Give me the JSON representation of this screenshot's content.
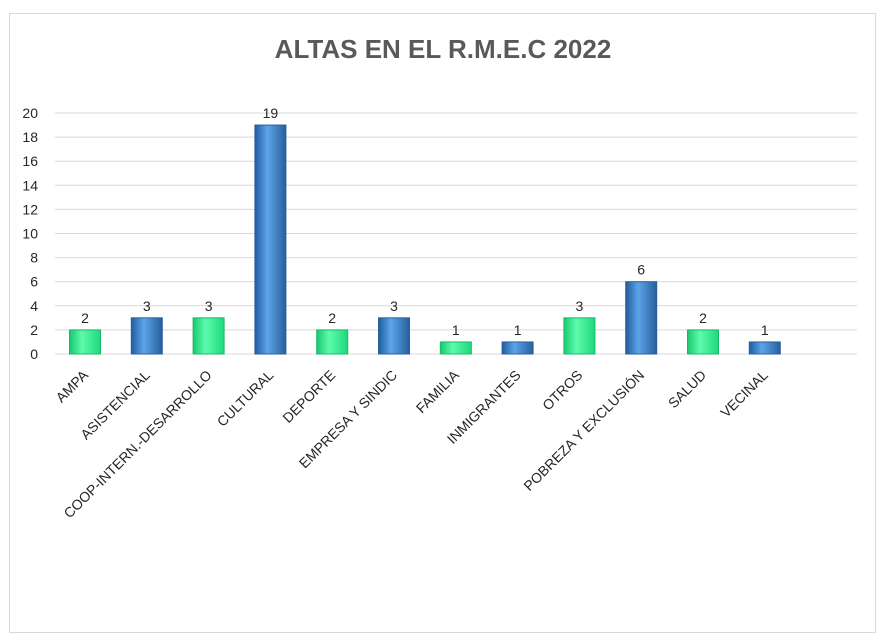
{
  "chart_data": {
    "type": "bar",
    "title": "ALTAS EN EL R.M.E.C 2022",
    "xlabel": "",
    "ylabel": "",
    "ylim": [
      0,
      20
    ],
    "yticks": [
      "0",
      "2",
      "4",
      "6",
      "8",
      "10",
      "12",
      "14",
      "16",
      "18",
      "20"
    ],
    "grid": true,
    "categories": [
      "AMPA",
      "ASISTENCIAL",
      "COOP-INTERN.-DESARROLLO",
      "CULTURAL",
      "DEPORTE",
      "EMPRESA Y SINDIC",
      "FAMILIA",
      "INMIGRANTES",
      "OTROS",
      "POBREZA Y EXCLUSIÓN",
      "SALUD",
      "VECINAL"
    ],
    "values": [
      2,
      3,
      3,
      19,
      2,
      3,
      1,
      1,
      3,
      6,
      2,
      1
    ],
    "bar_colors": [
      "#2ee58a",
      "#2f72b8",
      "#2ee58a",
      "#2f72b8",
      "#2ee58a",
      "#2f72b8",
      "#2ee58a",
      "#2f72b8",
      "#2ee58a",
      "#2f72b8",
      "#2ee58a",
      "#2f72b8"
    ]
  }
}
